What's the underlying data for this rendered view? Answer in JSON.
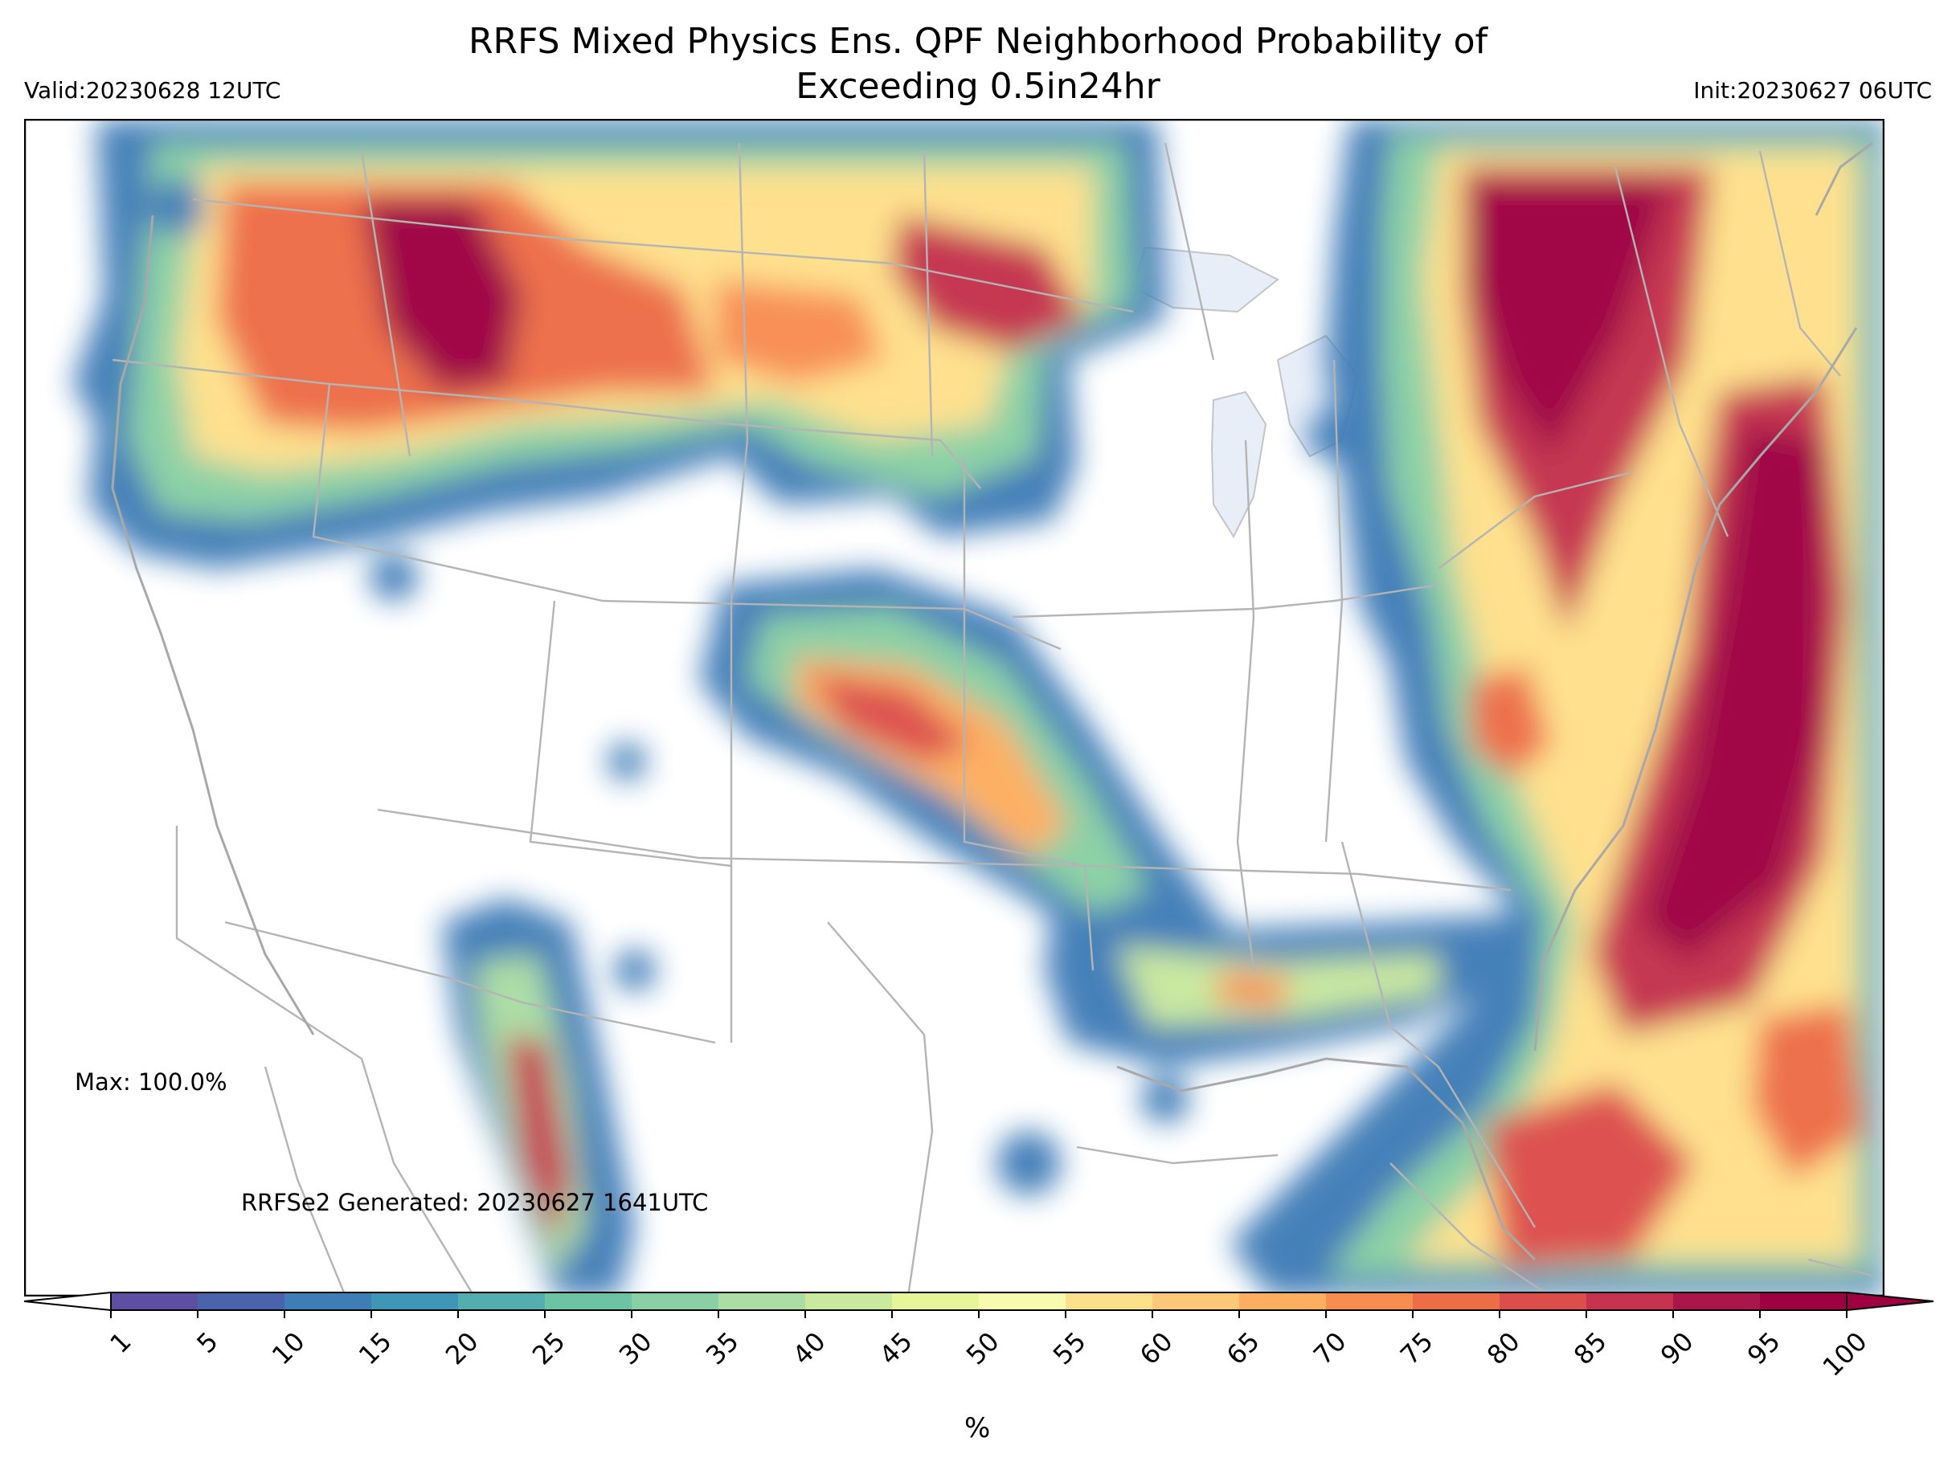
{
  "header": {
    "title_line1": "RRFS Mixed Physics Ens. QPF Neighborhood Probability of",
    "title_line2": "Exceeding 0.5in24hr",
    "valid": "Valid:20230628 12UTC",
    "init": "Init:20230627 06UTC"
  },
  "map": {
    "max_label": "Max: 100.0%",
    "generated": "RRFSe2 Generated: 20230627 1641UTC",
    "background": "#ffffff",
    "boundary_color": "#b4b4b4",
    "lake_color": "#e8eef8"
  },
  "colorbar": {
    "ticks": [
      "1",
      "5",
      "10",
      "15",
      "20",
      "25",
      "30",
      "35",
      "40",
      "45",
      "50",
      "55",
      "60",
      "65",
      "70",
      "75",
      "80",
      "85",
      "90",
      "95",
      "100"
    ],
    "colors": [
      "#5e4fa2",
      "#4a63ad",
      "#3f7db7",
      "#3f97b7",
      "#54aead",
      "#6dc4a5",
      "#8ad0a4",
      "#abdda4",
      "#c8e99e",
      "#e6f598",
      "#f7fbb0",
      "#fee08b",
      "#fdc877",
      "#fdae61",
      "#f88d52",
      "#ed6d47",
      "#dc4e4c",
      "#c5334e",
      "#a9164a",
      "#9e0142"
    ],
    "unit_label": "%"
  }
}
